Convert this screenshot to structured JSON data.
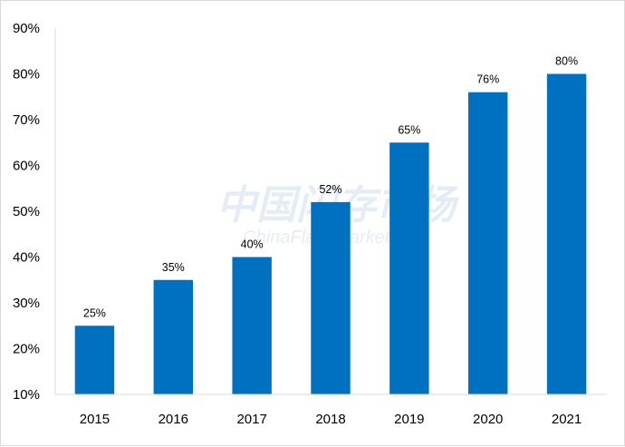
{
  "chart_data": {
    "type": "bar",
    "categories": [
      "2015",
      "2016",
      "2017",
      "2018",
      "2019",
      "2020",
      "2021"
    ],
    "values": [
      25,
      35,
      40,
      52,
      65,
      76,
      80
    ],
    "value_labels": [
      "25%",
      "35%",
      "40%",
      "52%",
      "65%",
      "76%",
      "80%"
    ],
    "y_ticks": [
      "10%",
      "20%",
      "30%",
      "40%",
      "50%",
      "60%",
      "70%",
      "80%",
      "90%"
    ],
    "y_tick_values": [
      10,
      20,
      30,
      40,
      50,
      60,
      70,
      80,
      90
    ],
    "ylim": [
      10,
      90
    ],
    "title": "",
    "xlabel": "",
    "ylabel": "",
    "grid": false,
    "bar_color": "#0070c0"
  },
  "watermark": {
    "cn": "中国闪存市场",
    "en": "ChinaFlashMarket.com"
  }
}
